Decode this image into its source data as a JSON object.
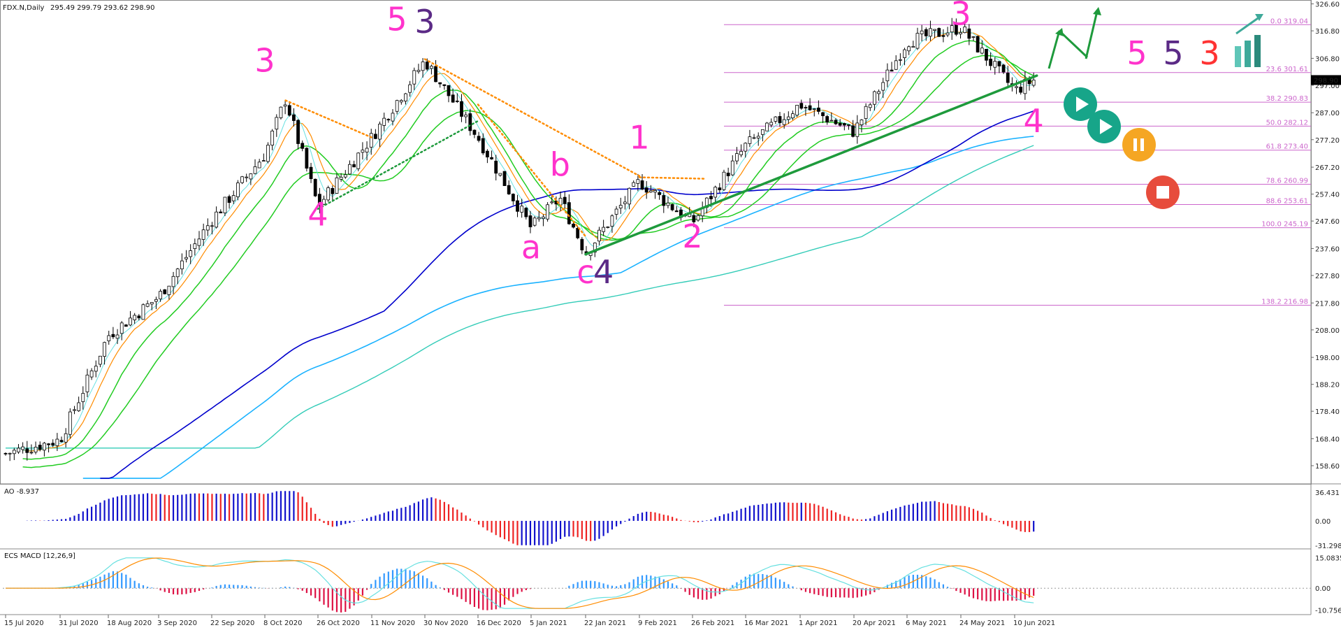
{
  "header": {
    "symbol_line": "FDX.N,Daily",
    "ohlc": "295.49 299.79 293.62 298.90"
  },
  "ao_label": "AO -8.937",
  "macd_label": "ECS MACD [12,26,9]",
  "colors": {
    "fib": "#cc66cc",
    "ma_pink": "#ff00cc",
    "ma_orange": "#ff8c00",
    "ema_green": "#22cc22",
    "ema_cyan_fast": "#66e0e0",
    "sma_blue": "#0000cc",
    "sma_sky": "#1ab2ff",
    "sma_teal": "#33ccb8",
    "trend_green": "#1e9a3c",
    "wave_pink": "#ff33cc",
    "wave_purple": "#5b2a86",
    "wave_red": "#ff3333",
    "ao_up": "#1111cc",
    "ao_down": "#ee2222",
    "macd_hist_up": "#3399ff",
    "macd_hist_down": "#dd1144",
    "teal_button": "#17a589",
    "orange_button": "#f5a623",
    "red_button": "#e74c3c"
  },
  "chart_data": [
    {
      "type": "candlestick",
      "title": "FDX.N,Daily",
      "y_ticks": [
        326.6,
        316.8,
        306.8,
        297.0,
        287.0,
        277.2,
        267.2,
        257.4,
        247.6,
        237.6,
        227.8,
        217.8,
        208.0,
        198.0,
        188.2,
        178.4,
        168.4,
        158.6
      ],
      "ylim": [
        153,
        327
      ],
      "x_ticks": [
        "15 Jul 2020",
        "31 Jul 2020",
        "18 Aug 2020",
        "3 Sep 2020",
        "22 Sep 2020",
        "8 Oct 2020",
        "26 Oct 2020",
        "11 Nov 2020",
        "30 Nov 2020",
        "16 Dec 2020",
        "5 Jan 2021",
        "22 Jan 2021",
        "9 Feb 2021",
        "26 Feb 2021",
        "16 Mar 2021",
        "1 Apr 2021",
        "20 Apr 2021",
        "6 May 2021",
        "24 May 2021",
        "10 Jun 2021"
      ],
      "last_price": 298.9,
      "price_path": [
        [
          "15 Jul 2020",
          163
        ],
        [
          "31 Jul 2020",
          168
        ],
        [
          "18 Aug 2020",
          206
        ],
        [
          "3 Sep 2020",
          220
        ],
        [
          "22 Sep 2020",
          248
        ],
        [
          "8 Oct 2020",
          272
        ],
        [
          "15 Oct 2020",
          292
        ],
        [
          "26 Oct 2020",
          253
        ],
        [
          "11 Nov 2020",
          278
        ],
        [
          "30 Nov 2020",
          306
        ],
        [
          "16 Dec 2020",
          278
        ],
        [
          "5 Jan 2021",
          245
        ],
        [
          "14 Jan 2021",
          256
        ],
        [
          "22 Jan 2021",
          236
        ],
        [
          "9 Feb 2021",
          262
        ],
        [
          "26 Feb 2021",
          247
        ],
        [
          "16 Mar 2021",
          275
        ],
        [
          "1 Apr 2021",
          290
        ],
        [
          "20 Apr 2021",
          280
        ],
        [
          "6 May 2021",
          313
        ],
        [
          "24 May 2021",
          318
        ],
        [
          "10 Jun 2021",
          295
        ],
        [
          "16 Jun 2021",
          298.9
        ]
      ],
      "fibonacci": [
        {
          "label": "0.0 319.04",
          "value": 319.04
        },
        {
          "label": "23.6 301.61",
          "value": 301.61
        },
        {
          "label": "38.2 290.83",
          "value": 290.83
        },
        {
          "label": "50.0 282.12",
          "value": 282.12
        },
        {
          "label": "61.8 273.40",
          "value": 273.4
        },
        {
          "label": "78.6 260.99",
          "value": 260.99
        },
        {
          "label": "88.6 253.61",
          "value": 253.61
        },
        {
          "label": "100.0 245.19",
          "value": 245.19
        },
        {
          "label": "138.2 216.98",
          "value": 216.98
        }
      ],
      "wave_labels": [
        {
          "text": "3",
          "color": "pink",
          "date": "8 Oct 2020",
          "price": 302
        },
        {
          "text": "4",
          "color": "pink",
          "date": "26 Oct 2020",
          "price": 246
        },
        {
          "text": "5",
          "color": "pink",
          "date": "20 Nov 2020",
          "price": 317
        },
        {
          "text": "3",
          "color": "purple",
          "date": "30 Nov 2020",
          "price": 316
        },
        {
          "text": "a",
          "color": "pink",
          "date": "5 Jan 2021",
          "price": 234
        },
        {
          "text": "b",
          "color": "pink",
          "date": "14 Jan 2021",
          "price": 264
        },
        {
          "text": "c",
          "color": "pink",
          "date": "22 Jan 2021",
          "price": 225
        },
        {
          "text": "4",
          "color": "purple",
          "date": "28 Jan 2021",
          "price": 225
        },
        {
          "text": "1",
          "color": "pink",
          "date": "9 Feb 2021",
          "price": 274
        },
        {
          "text": "2",
          "color": "pink",
          "date": "26 Feb 2021",
          "price": 238
        },
        {
          "text": "3",
          "color": "pink",
          "date": "24 May 2021",
          "price": 319
        },
        {
          "text": "4",
          "color": "pink",
          "date": "16 Jun 2021",
          "price": 280
        }
      ],
      "legend_waves": [
        {
          "text": "5",
          "color": "pink"
        },
        {
          "text": "5",
          "color": "purple"
        },
        {
          "text": "3",
          "color": "red"
        }
      ]
    },
    {
      "type": "bar",
      "title": "AO -8.937",
      "y_ticks": [
        "36.431",
        "0.00",
        "-31.298"
      ],
      "ylim": [
        -33,
        40
      ]
    },
    {
      "type": "bar",
      "title": "ECS MACD [12,26,9]",
      "y_ticks": [
        "15.0835",
        "0.00",
        "-10.7567"
      ],
      "ylim": [
        -12,
        17
      ]
    }
  ]
}
